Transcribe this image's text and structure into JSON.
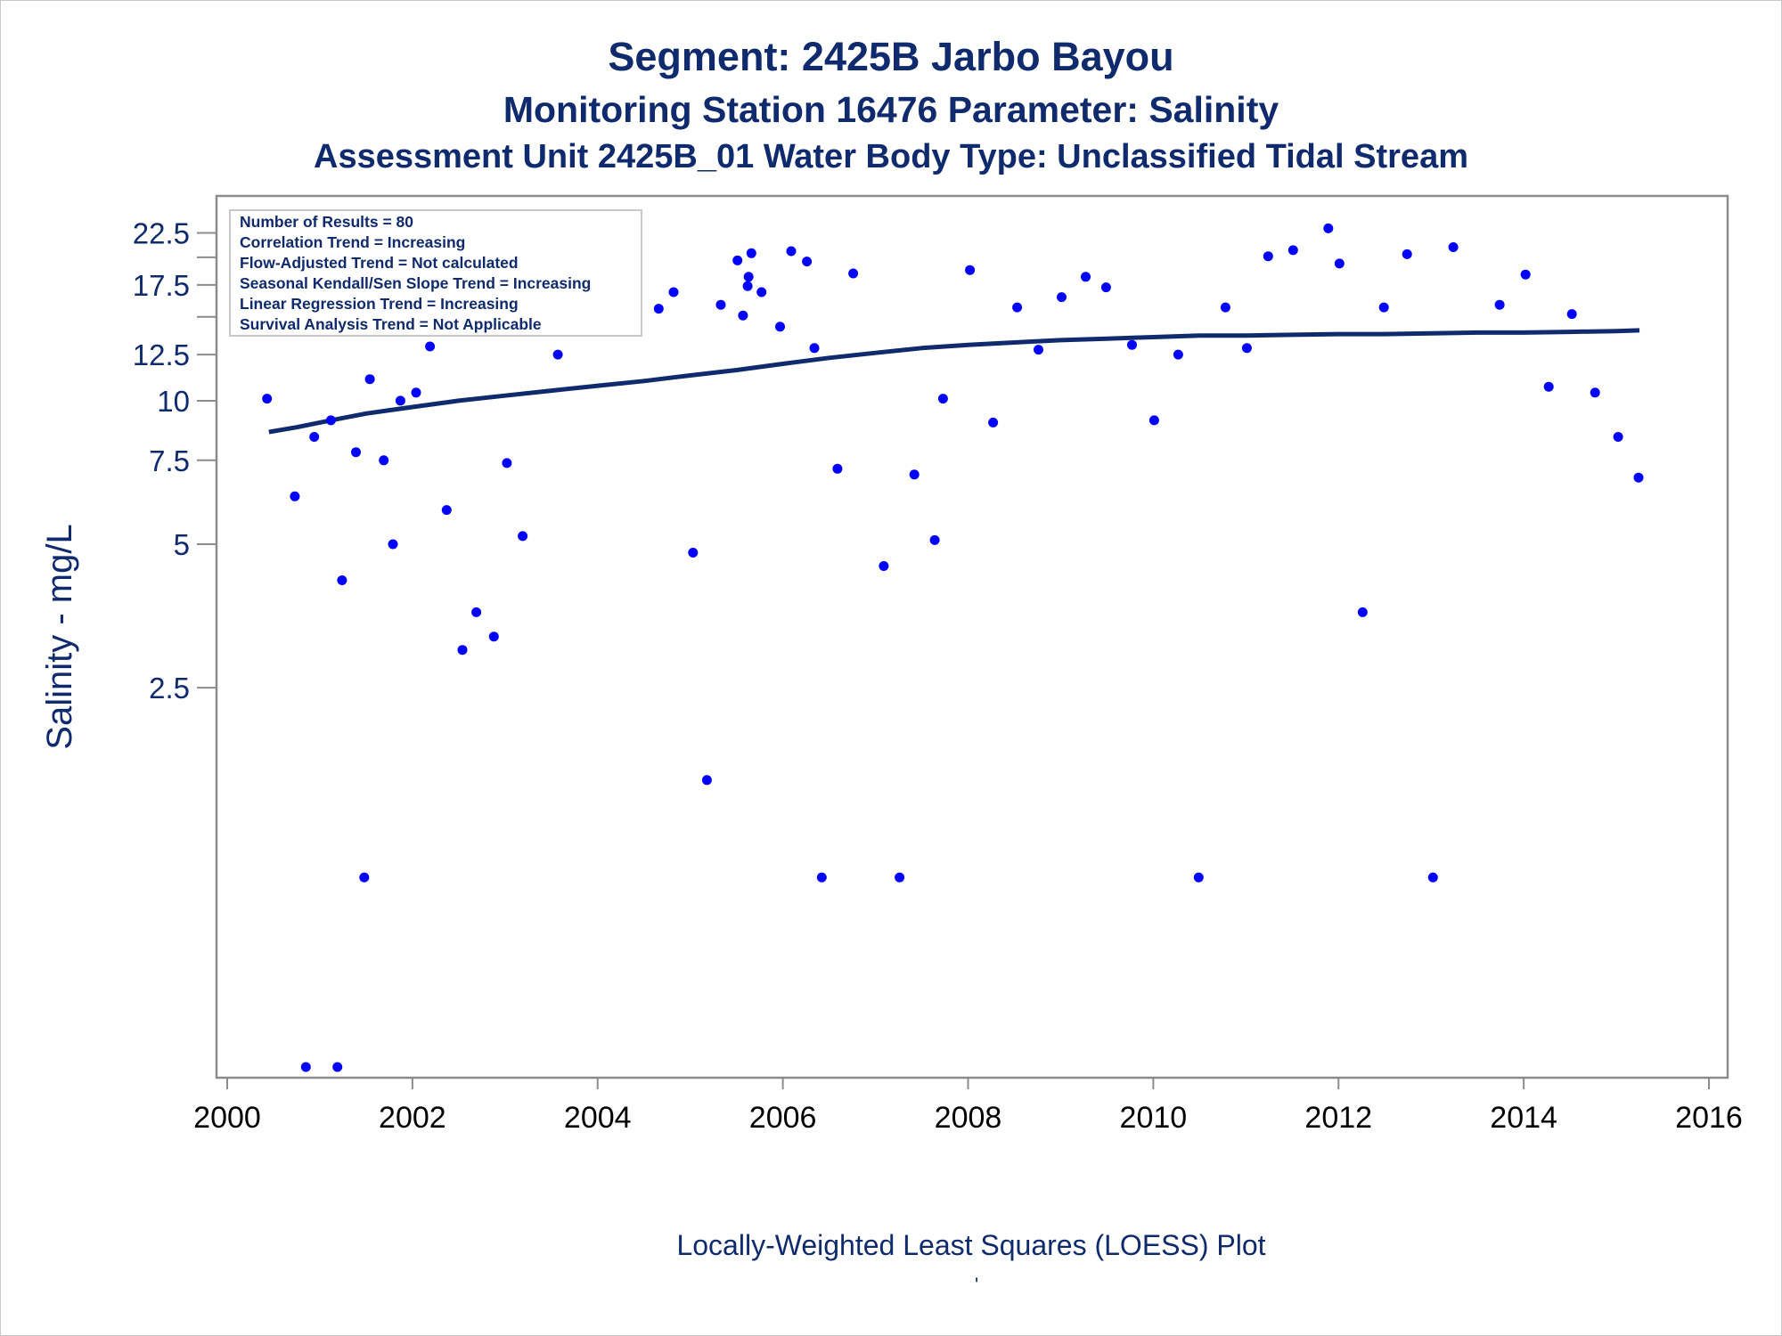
{
  "colors": {
    "title": "#0f2b6e",
    "points": "#0000ff",
    "loess_line": "#0f2b6e",
    "axis": "#8c8c8c",
    "tick_labels": "#0f2b6e",
    "x_tick_labels": "#000000"
  },
  "titles": {
    "line1": "Segment: 2425B  Jarbo Bayou",
    "line2": "Monitoring Station 16476 Parameter: Salinity",
    "line3": "Assessment Unit 2425B_01   Water Body Type: Unclassified Tidal Stream"
  },
  "stats_box": [
    "Number of Results = 80",
    "Correlation Trend = Increasing",
    "Flow-Adjusted Trend = Not calculated",
    "Seasonal Kendall/Sen Slope Trend = Increasing",
    "Linear Regression Trend = Increasing",
    "Survival Analysis Trend = Not Applicable"
  ],
  "footnote": "Locally-Weighted Least Squares (LOESS) Plot",
  "footnote_mark": "'",
  "chart_data": {
    "type": "scatter",
    "ylabel": "Salinity - mg/L",
    "xlabel": "",
    "xlim": [
      2000,
      2016
    ],
    "x_ticks": [
      2000,
      2002,
      2004,
      2006,
      2008,
      2010,
      2012,
      2014,
      2016
    ],
    "y_scale": "log",
    "ylim": [
      0.4,
      25
    ],
    "y_ticks": [
      2.5,
      5,
      7.5,
      10,
      12.5,
      17.5,
      22.5
    ],
    "y_minor_ticks": [
      15,
      20
    ],
    "grid": false,
    "series": [
      {
        "kind": "points",
        "x": [
          2000.43,
          2000.56,
          2000.65,
          2000.73,
          2000.79,
          2000.85,
          2000.94,
          2001.12,
          2001.19,
          2001.24,
          2001.39,
          2001.48,
          2001.54,
          2001.64,
          2001.69,
          2001.79,
          2001.87,
          2002.04,
          2002.19,
          2002.37,
          2002.54,
          2002.69,
          2002.88,
          2003.02,
          2003.19,
          2003.32,
          2003.57,
          2003.62,
          2004.66,
          2004.82,
          2005.03,
          2005.18,
          2005.33,
          2005.51,
          2005.57,
          2005.62,
          2005.63,
          2005.66,
          2005.77,
          2005.97,
          2006.09,
          2006.26,
          2006.34,
          2006.42,
          2006.59,
          2006.76,
          2007.09,
          2007.26,
          2007.42,
          2007.64,
          2007.73,
          2008.02,
          2008.27,
          2008.53,
          2008.76,
          2009.01,
          2009.27,
          2009.49,
          2009.77,
          2010.01,
          2010.27,
          2010.49,
          2010.78,
          2011.01,
          2011.24,
          2011.51,
          2011.89,
          2012.01,
          2012.26,
          2012.49,
          2012.74,
          2013.02,
          2013.24,
          2013.74,
          2014.02,
          2014.27,
          2014.52,
          2014.77,
          2015.02,
          2015.24
        ],
        "y": [
          10.1,
          17.3,
          20.6,
          6.3,
          16.6,
          0.4,
          8.4,
          9.1,
          0.4,
          4.2,
          7.8,
          1.0,
          11.1,
          16.6,
          7.5,
          5.0,
          10.0,
          10.4,
          13.0,
          5.9,
          3.0,
          3.6,
          3.2,
          7.4,
          5.2,
          14.0,
          12.5,
          17.5,
          15.6,
          16.9,
          4.8,
          1.6,
          15.9,
          19.7,
          15.1,
          17.4,
          18.2,
          20.4,
          16.9,
          14.3,
          20.6,
          19.6,
          12.9,
          1.0,
          7.2,
          18.5,
          4.5,
          1.0,
          7.0,
          5.1,
          10.1,
          18.8,
          9.0,
          15.7,
          12.8,
          16.5,
          18.2,
          17.3,
          13.1,
          9.1,
          12.5,
          1.0,
          15.7,
          12.9,
          20.1,
          20.7,
          23.0,
          19.4,
          3.6,
          15.7,
          20.3,
          1.0,
          21.0,
          15.9,
          18.4,
          10.7,
          15.2,
          10.4,
          8.4,
          6.9
        ]
      },
      {
        "kind": "loess",
        "x": [
          2000.45,
          2000.75,
          2001.0,
          2001.25,
          2001.5,
          2001.75,
          2002.0,
          2002.5,
          2003.0,
          2003.5,
          2004.0,
          2004.5,
          2005.0,
          2005.5,
          2006.0,
          2006.5,
          2007.0,
          2007.5,
          2008.0,
          2008.5,
          2009.0,
          2009.5,
          2010.0,
          2010.5,
          2011.0,
          2011.5,
          2012.0,
          2012.5,
          2013.0,
          2013.5,
          2014.0,
          2014.5,
          2015.0,
          2015.25
        ],
        "y": [
          8.6,
          8.8,
          9.0,
          9.2,
          9.4,
          9.55,
          9.7,
          10.0,
          10.25,
          10.5,
          10.75,
          11.0,
          11.3,
          11.6,
          11.95,
          12.3,
          12.6,
          12.9,
          13.1,
          13.25,
          13.4,
          13.5,
          13.6,
          13.7,
          13.7,
          13.75,
          13.8,
          13.8,
          13.85,
          13.9,
          13.9,
          13.95,
          14.0,
          14.05
        ]
      }
    ]
  }
}
